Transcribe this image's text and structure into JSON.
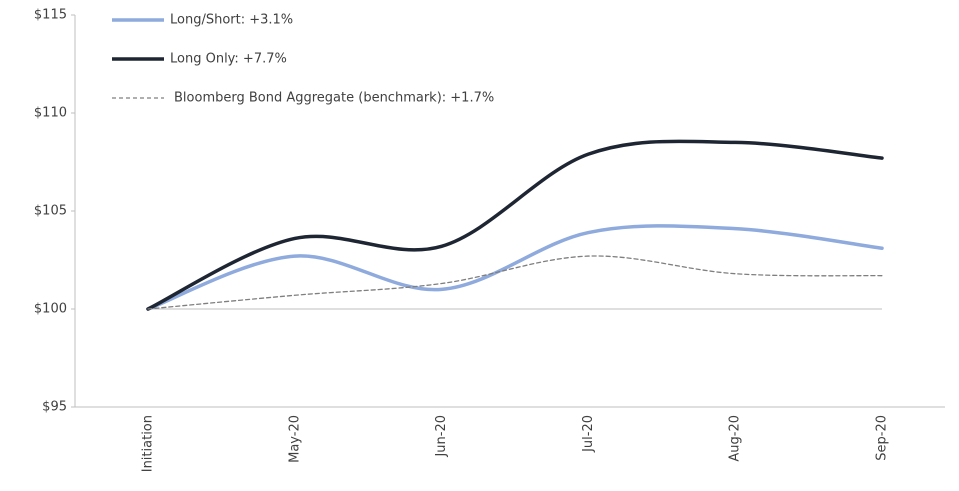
{
  "chart_data": {
    "type": "line",
    "categories": [
      "Initiation",
      "May-20",
      "Jun-20",
      "Jul-20",
      "Aug-20",
      "Sep-20"
    ],
    "series": [
      {
        "name": "Long/Short: +3.1%",
        "color": "#8faadc",
        "values": [
          100,
          102.7,
          101.0,
          103.9,
          104.1,
          103.1
        ]
      },
      {
        "name": "Long Only: +7.7%",
        "color": "#1f2633",
        "values": [
          100,
          103.6,
          103.2,
          107.9,
          108.5,
          107.7
        ]
      },
      {
        "name": "Bloomberg Bond Aggregate (benchmark): +1.7%",
        "color": "#7f7f7f",
        "dashed": true,
        "values": [
          100,
          100.7,
          101.3,
          102.7,
          101.8,
          101.7
        ]
      }
    ],
    "ylim": [
      95,
      115
    ],
    "yticks": [
      {
        "value": 95,
        "label": "$95"
      },
      {
        "value": 100,
        "label": "$100"
      },
      {
        "value": 105,
        "label": "$105"
      },
      {
        "value": 110,
        "label": "$110"
      },
      {
        "value": 115,
        "label": "$115"
      }
    ],
    "reference_line": 100,
    "smooth": true,
    "legend": "top-left"
  }
}
